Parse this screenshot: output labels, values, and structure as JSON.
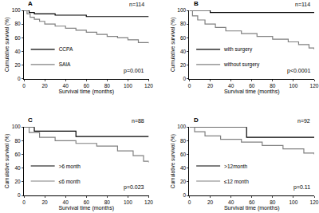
{
  "chart_data": [
    {
      "type": "line",
      "title": "A",
      "subtitle": "n=114",
      "annotations": [
        "p=0.001"
      ],
      "x_label": "Survival time (months)",
      "y_label": "Cumulative survival (%)",
      "xlim": [
        0,
        120
      ],
      "xticks": [
        0,
        20,
        40,
        60,
        80,
        100,
        120
      ],
      "ylim": [
        0,
        100
      ],
      "yticks": [
        0,
        20,
        40,
        60,
        80,
        100
      ],
      "grid": false,
      "legend": "lower left",
      "line_style": "step",
      "series": [
        {
          "name": "CCPA",
          "color": "#000000",
          "x": [
            0,
            5,
            10,
            30,
            60,
            120
          ],
          "values": [
            100,
            97,
            95,
            93,
            91,
            91
          ]
        },
        {
          "name": "SAIA",
          "color": "#808080",
          "x": [
            0,
            3,
            6,
            10,
            15,
            20,
            30,
            40,
            50,
            60,
            70,
            80,
            90,
            100,
            110,
            120
          ],
          "values": [
            100,
            95,
            90,
            87,
            84,
            80,
            77,
            74,
            71,
            68,
            65,
            62,
            60,
            57,
            53,
            52
          ]
        }
      ]
    },
    {
      "type": "line",
      "title": "B",
      "subtitle": "n=114",
      "annotations": [
        "p<0.0001"
      ],
      "x_label": "Survival time (months)",
      "y_label": "Cumulative survival (%)",
      "xlim": [
        0,
        120
      ],
      "xticks": [
        0,
        20,
        40,
        60,
        80,
        100,
        120
      ],
      "ylim": [
        0,
        100
      ],
      "yticks": [
        0,
        20,
        40,
        60,
        80,
        100
      ],
      "grid": false,
      "legend": "lower left",
      "line_style": "step",
      "series": [
        {
          "name": "with surgery",
          "color": "#000000",
          "x": [
            0,
            20,
            120
          ],
          "values": [
            100,
            97,
            97
          ]
        },
        {
          "name": "without surgery",
          "color": "#808080",
          "x": [
            0,
            3,
            8,
            15,
            25,
            35,
            50,
            65,
            80,
            95,
            105,
            115,
            120
          ],
          "values": [
            100,
            92,
            86,
            80,
            75,
            70,
            66,
            62,
            58,
            54,
            50,
            45,
            43
          ]
        }
      ]
    },
    {
      "type": "line",
      "title": "C",
      "subtitle": "n=88",
      "annotations": [
        "p=0.023"
      ],
      "x_label": "Survival time (months)",
      "y_label": "Cumulative survival (%)",
      "xlim": [
        0,
        120
      ],
      "xticks": [
        0,
        20,
        40,
        60,
        80,
        100,
        120
      ],
      "ylim": [
        0,
        100
      ],
      "yticks": [
        0,
        20,
        40,
        60,
        80,
        100
      ],
      "grid": false,
      "legend": "lower left",
      "line_style": "step",
      "series": [
        {
          "name": ">6 month",
          "color": "#000000",
          "x": [
            0,
            10,
            50,
            120
          ],
          "values": [
            100,
            94,
            86,
            86
          ]
        },
        {
          "name": "≤6 month",
          "color": "#808080",
          "x": [
            0,
            5,
            15,
            30,
            50,
            70,
            90,
            105,
            115,
            120
          ],
          "values": [
            100,
            92,
            85,
            80,
            76,
            72,
            65,
            58,
            50,
            48
          ]
        }
      ]
    },
    {
      "type": "line",
      "title": "D",
      "subtitle": "n=92",
      "annotations": [
        "p=0.11"
      ],
      "x_label": "Survival time (months)",
      "y_label": "Cumulative survival (%)",
      "xlim": [
        0,
        120
      ],
      "xticks": [
        0,
        20,
        40,
        60,
        80,
        100,
        120
      ],
      "ylim": [
        0,
        100
      ],
      "yticks": [
        0,
        20,
        40,
        60,
        80,
        100
      ],
      "grid": false,
      "legend": "lower left",
      "line_style": "step",
      "series": [
        {
          "name": ">12month",
          "color": "#000000",
          "x": [
            0,
            55,
            120
          ],
          "values": [
            100,
            85,
            85
          ]
        },
        {
          "name": "≤12 month",
          "color": "#808080",
          "x": [
            0,
            5,
            15,
            30,
            50,
            70,
            90,
            110,
            120
          ],
          "values": [
            100,
            93,
            87,
            82,
            78,
            73,
            68,
            62,
            60
          ]
        }
      ]
    }
  ]
}
